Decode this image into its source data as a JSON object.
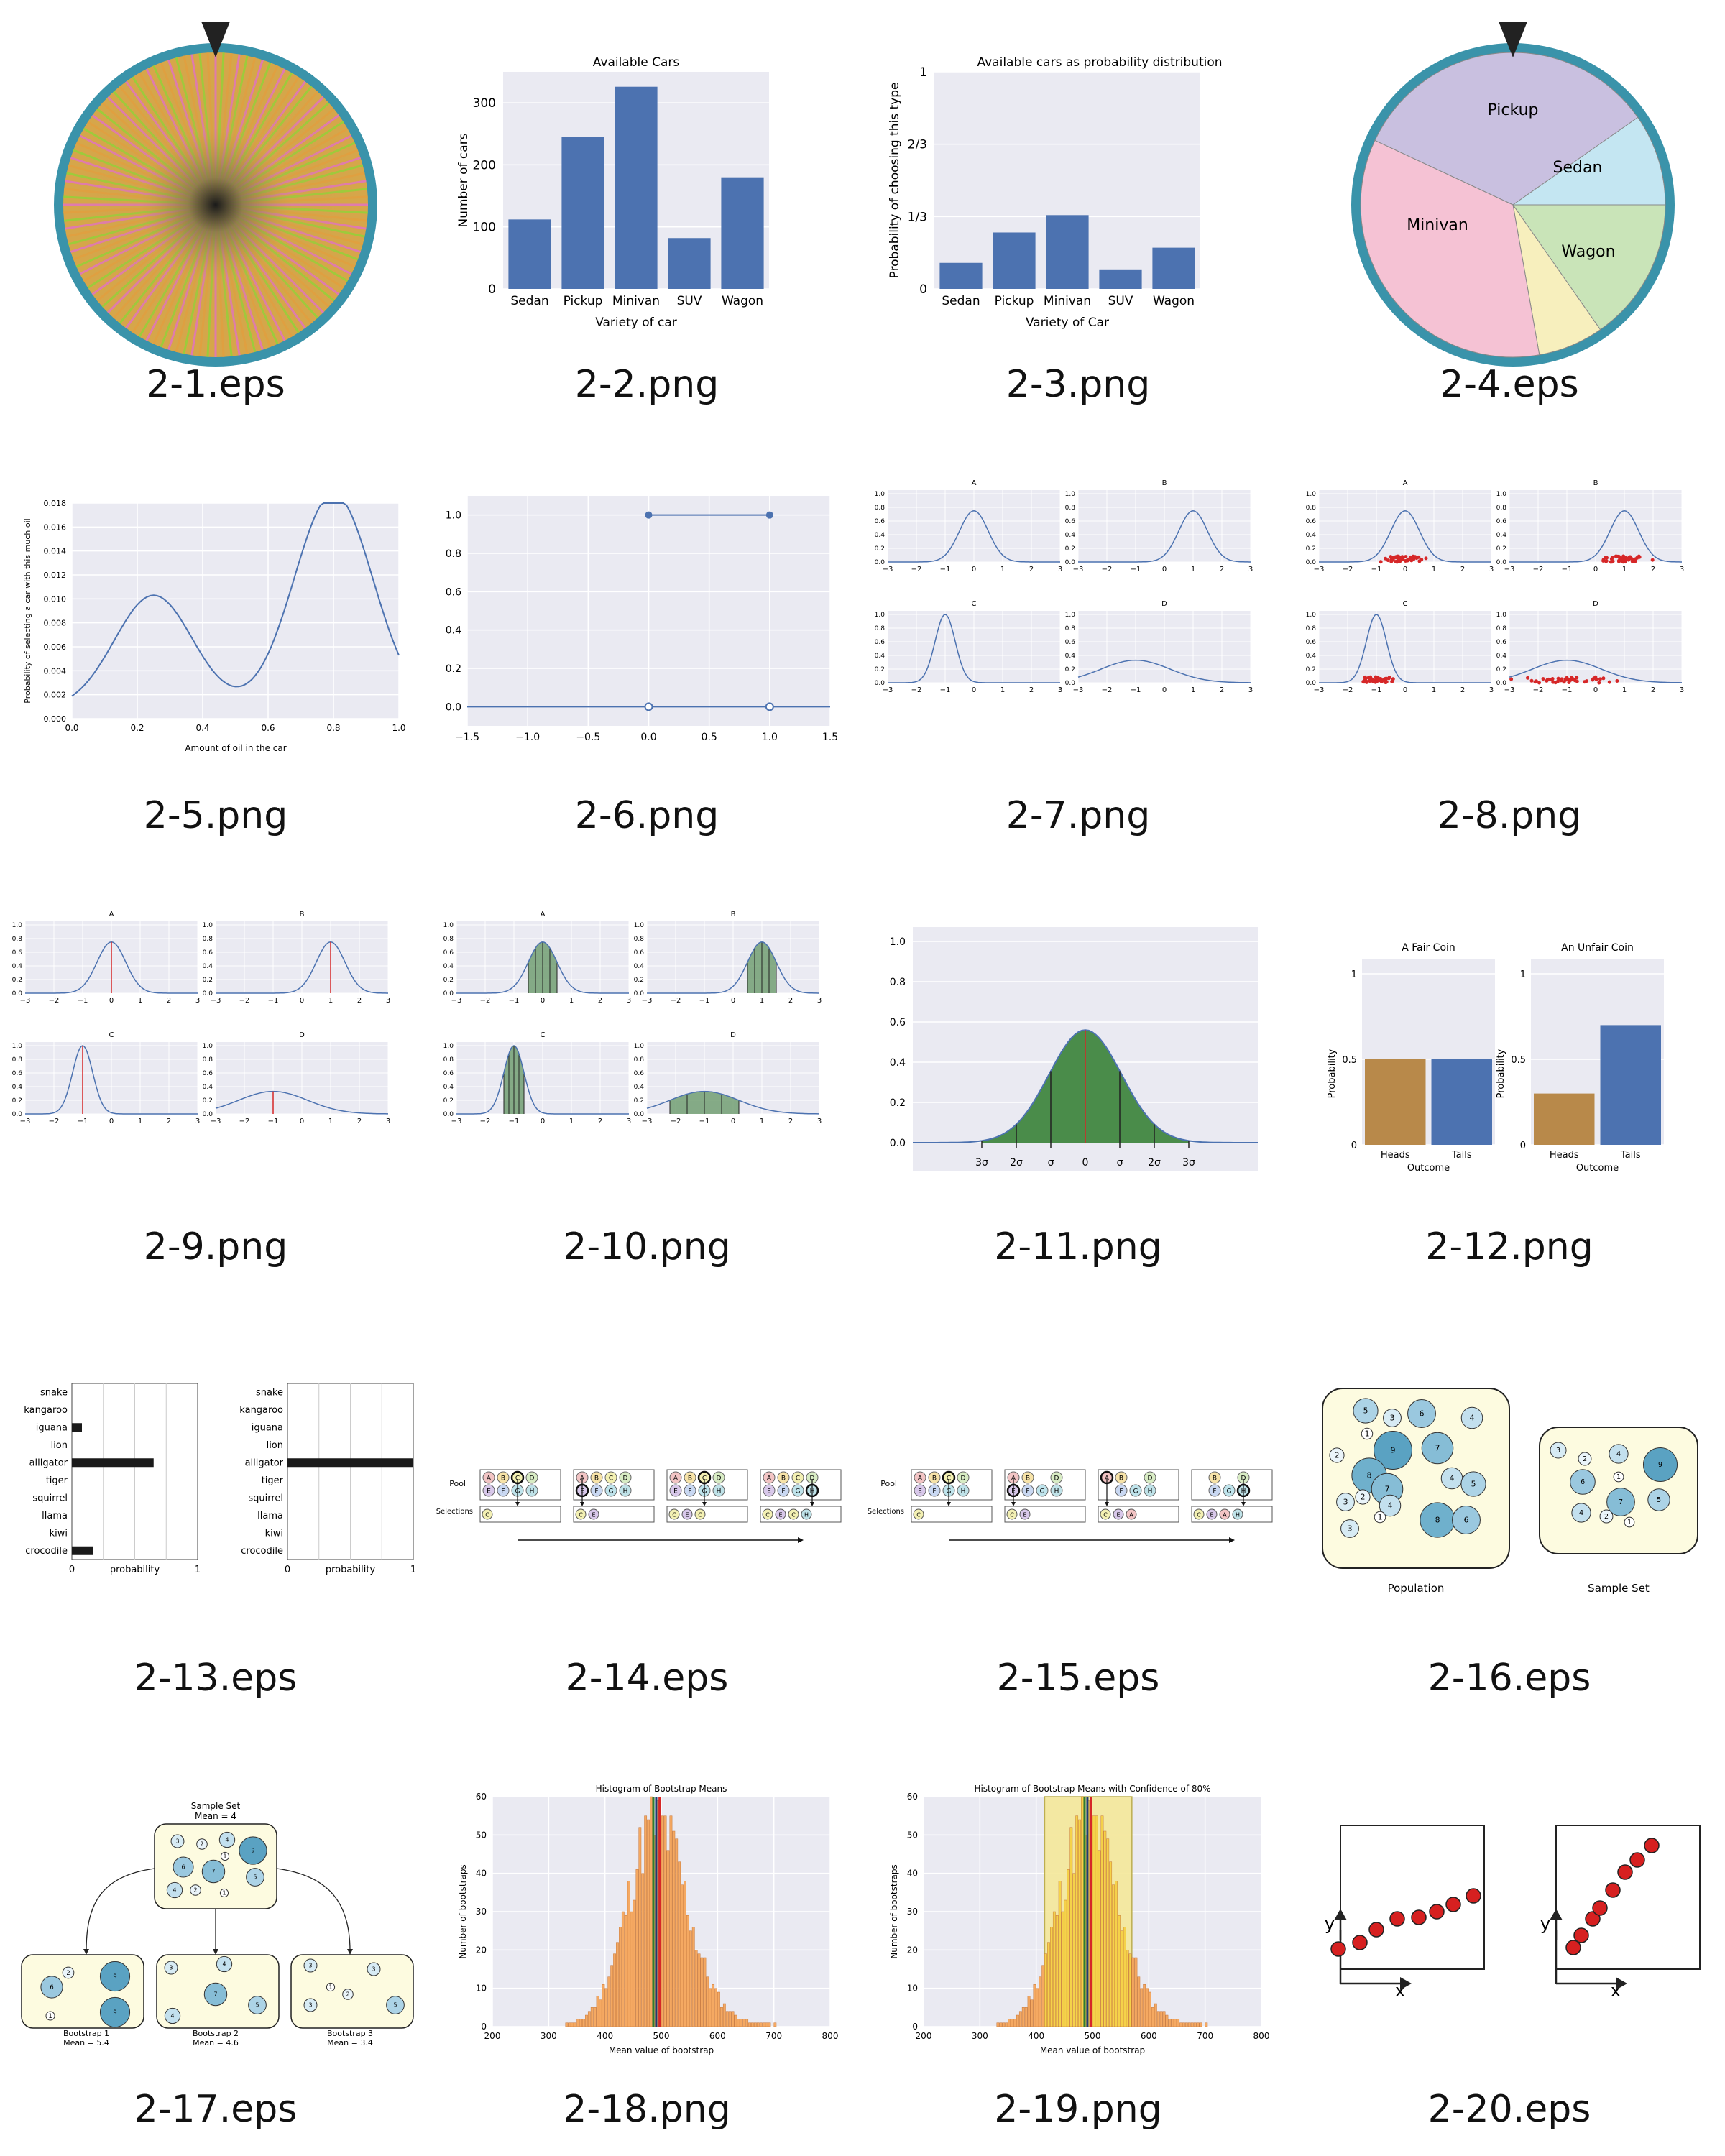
{
  "captions": [
    "2-1.eps",
    "2-2.png",
    "2-3.png",
    "2-4.eps",
    "2-5.png",
    "2-6.png",
    "2-7.png",
    "2-8.png",
    "2-9.png",
    "2-10.png",
    "2-11.png",
    "2-12.png",
    "2-13.eps",
    "2-14.eps",
    "2-15.eps",
    "2-16.eps",
    "2-17.eps",
    "2-18.png",
    "2-19.png",
    "2-20.eps"
  ],
  "colors": {
    "bar_blue": "#4c72b0",
    "plot_bg": "#eaeaf2",
    "red": "#d62728",
    "green": "#4a8c4a",
    "orange": "#f5a962",
    "yellow": "#f5d24a",
    "rim": "#3a93aa",
    "brown": "#b8894a"
  },
  "fig2_2": {
    "chart_data": {
      "type": "bar",
      "title": "Available Cars",
      "xlabel": "Variety of car",
      "ylabel": "Number of cars",
      "categories": [
        "Sedan",
        "Pickup",
        "Minivan",
        "SUV",
        "Wagon"
      ],
      "values": [
        112,
        245,
        326,
        82,
        180
      ],
      "yticks": [
        "0",
        "100",
        "200",
        "300"
      ],
      "ylim": [
        0,
        350
      ]
    }
  },
  "fig2_3": {
    "chart_data": {
      "type": "bar",
      "title": "Available cars as probability distribution",
      "xlabel": "Variety of Car",
      "ylabel": "Probability of choosing this type",
      "categories": [
        "Sedan",
        "Pickup",
        "Minivan",
        "SUV",
        "Wagon"
      ],
      "values": [
        0.12,
        0.26,
        0.34,
        0.09,
        0.19
      ],
      "yticks": [
        "0",
        "1/3",
        "2/3",
        "1"
      ],
      "ylim": [
        0,
        1
      ]
    }
  },
  "fig2_4": {
    "slices": [
      "Pickup",
      "Sedan",
      "Wagon",
      "SUV",
      "Minivan"
    ]
  },
  "fig2_5": {
    "chart_data": {
      "type": "line",
      "xlabel": "Amount of oil in the car",
      "ylabel": "Probability of selecting a car with this much oil",
      "xticks": [
        "0.0",
        "0.2",
        "0.4",
        "0.6",
        "0.8",
        "1.0"
      ],
      "yticks": [
        "0.000",
        "0.002",
        "0.004",
        "0.006",
        "0.008",
        "0.010",
        "0.012",
        "0.014",
        "0.016",
        "0.018"
      ],
      "ylim": [
        0,
        0.018
      ]
    }
  },
  "fig2_6": {
    "chart_data": {
      "type": "line",
      "xticks": [
        "−1.5",
        "−1.0",
        "−0.5",
        "0.0",
        "0.5",
        "1.0",
        "1.5"
      ],
      "yticks": [
        "0.0",
        "0.2",
        "0.4",
        "0.6",
        "0.8",
        "1.0"
      ]
    }
  },
  "panels": {
    "titles": [
      "A",
      "B",
      "C",
      "D"
    ],
    "xticks": [
      "−3",
      "−2",
      "−1",
      "0",
      "1",
      "2",
      "3"
    ],
    "yticks": [
      "0.0",
      "0.2",
      "0.4",
      "0.6",
      "0.8",
      "1.0"
    ]
  },
  "fig2_11": {
    "chart_data": {
      "type": "area",
      "yticks": [
        "0.0",
        "0.2",
        "0.4",
        "0.6",
        "0.8",
        "1.0"
      ],
      "sigma_labels": [
        "3σ",
        "2σ",
        "σ",
        "0",
        "σ",
        "2σ",
        "3σ"
      ]
    }
  },
  "fig2_12": {
    "chart_data": [
      {
        "type": "bar",
        "title": "A Fair Coin",
        "xlabel": "Outcome",
        "ylabel": "Probability",
        "categories": [
          "Heads",
          "Tails"
        ],
        "values": [
          0.5,
          0.5
        ],
        "yticks": [
          "0",
          "0.5",
          "1"
        ]
      },
      {
        "type": "bar",
        "title": "An Unfair Coin",
        "xlabel": "Outcome",
        "ylabel": "Probability",
        "categories": [
          "Heads",
          "Tails"
        ],
        "values": [
          0.3,
          0.7
        ],
        "yticks": [
          "0",
          "0.5",
          "1"
        ]
      }
    ]
  },
  "fig2_13": {
    "chart_data": [
      {
        "type": "bar",
        "categories": [
          "snake",
          "kangaroo",
          "iguana",
          "lion",
          "alligator",
          "tiger",
          "squirrel",
          "llama",
          "kiwi",
          "crocodile"
        ],
        "values": [
          0,
          0,
          0.08,
          0,
          0.65,
          0,
          0,
          0,
          0,
          0.17
        ],
        "xlabel": "probability",
        "xticks": [
          "0",
          "1"
        ]
      },
      {
        "type": "bar",
        "categories": [
          "snake",
          "kangaroo",
          "iguana",
          "lion",
          "alligator",
          "tiger",
          "squirrel",
          "llama",
          "kiwi",
          "crocodile"
        ],
        "values": [
          0,
          0,
          0,
          0,
          1,
          0,
          0,
          0,
          0,
          0
        ],
        "xlabel": "probability",
        "xticks": [
          "0",
          "1"
        ]
      }
    ]
  },
  "pool": {
    "label_pool": "Pool",
    "label_selections": "Selections",
    "letters": [
      "A",
      "B",
      "C",
      "D",
      "E",
      "F",
      "G",
      "H"
    ]
  },
  "fig2_14": {
    "selections": [
      [
        "C"
      ],
      [
        "C",
        "E"
      ],
      [
        "C",
        "E",
        "C"
      ],
      [
        "C",
        "E",
        "C",
        "H"
      ]
    ]
  },
  "fig2_15": {
    "selections": [
      [
        "C"
      ],
      [
        "C",
        "E"
      ],
      [
        "C",
        "E",
        "A"
      ],
      [
        "C",
        "E",
        "A",
        "H"
      ]
    ]
  },
  "fig2_16": {
    "population": [
      "5",
      "3",
      "6",
      "4",
      "2",
      "1",
      "9",
      "7",
      "8",
      "7",
      "4",
      "3",
      "2",
      "4",
      "1",
      "5",
      "3",
      "8",
      "6"
    ],
    "sample": [
      "3",
      "2",
      "4",
      "9",
      "6",
      "1",
      "7",
      "4",
      "2",
      "1",
      "5"
    ],
    "label_population": "Population",
    "label_sample": "Sample Set"
  },
  "fig2_17": {
    "top_title": "Sample Set",
    "top_mean": "Mean = 4",
    "boots": [
      {
        "title": "Bootstrap 1",
        "mean": "Mean = 5.4"
      },
      {
        "title": "Bootstrap 2",
        "mean": "Mean = 4.6"
      },
      {
        "title": "Bootstrap 3",
        "mean": "Mean = 3.4"
      }
    ]
  },
  "fig2_18": {
    "chart_data": {
      "type": "bar",
      "title": "Histogram of Bootstrap Means",
      "xlabel": "Mean value of bootstrap",
      "ylabel": "Number of bootstraps",
      "xticks": [
        "200",
        "300",
        "400",
        "500",
        "600",
        "700",
        "800"
      ],
      "yticks": [
        "0",
        "10",
        "20",
        "30",
        "40",
        "50",
        "60"
      ],
      "xlim": [
        200,
        800
      ],
      "ylim": [
        0,
        60
      ]
    }
  },
  "fig2_19": {
    "chart_data": {
      "type": "bar",
      "title": "Histogram of Bootstrap Means with Confidence of 80%",
      "xlabel": "Mean value of bootstrap",
      "ylabel": "Number of bootstraps",
      "xticks": [
        "200",
        "300",
        "400",
        "500",
        "600",
        "700",
        "800"
      ],
      "yticks": [
        "0",
        "10",
        "20",
        "30",
        "40",
        "50",
        "60"
      ],
      "xlim": [
        200,
        800
      ],
      "ylim": [
        0,
        60
      ]
    }
  },
  "fig2_20": {
    "xlabel": "x",
    "ylabel": "y"
  }
}
